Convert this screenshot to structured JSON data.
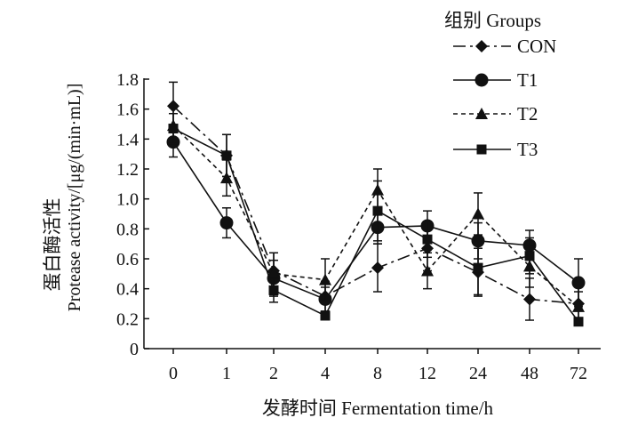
{
  "chart_data": {
    "type": "line",
    "categories": [
      "0",
      "1",
      "2",
      "4",
      "8",
      "12",
      "24",
      "48",
      "72"
    ],
    "xlabel": "发酵时间 Fermentation time/h",
    "ylabel_cn": "蛋白酶活性",
    "ylabel_en": "Protease activity/[μg/(min·mL)]",
    "ylim": [
      0,
      1.8
    ],
    "yticks": [
      "0",
      "0.2",
      "0.4",
      "0.6",
      "0.8",
      "1.0",
      "1.2",
      "1.4",
      "1.6",
      "1.8"
    ],
    "legend_title": "组别 Groups",
    "legend_position": "top-right",
    "grid": false,
    "series": [
      {
        "name": "CON",
        "marker": "diamond",
        "dash": "dashdot",
        "values": [
          1.62,
          1.29,
          0.52,
          0.35,
          0.54,
          0.67,
          0.51,
          0.33,
          0.3
        ],
        "errors": [
          0.16,
          0.14,
          0.12,
          0.1,
          0.16,
          0.15,
          0.16,
          0.14,
          0.12
        ]
      },
      {
        "name": "T1",
        "marker": "circle",
        "dash": "solid",
        "values": [
          1.38,
          0.84,
          0.47,
          0.33,
          0.81,
          0.82,
          0.72,
          0.69,
          0.44
        ],
        "errors": [
          0.1,
          0.1,
          0.12,
          0.08,
          0.11,
          0.1,
          0.12,
          0.1,
          0.16
        ]
      },
      {
        "name": "T2",
        "marker": "triangle",
        "dash": "dotted",
        "values": [
          1.49,
          1.14,
          0.5,
          0.46,
          1.06,
          0.52,
          0.9,
          0.55,
          0.28
        ],
        "errors": [
          0.12,
          0.12,
          0.14,
          0.14,
          0.14,
          0.12,
          0.14,
          0.14,
          0.1
        ]
      },
      {
        "name": "T3",
        "marker": "square",
        "dash": "solid",
        "values": [
          1.47,
          1.29,
          0.39,
          0.22,
          0.92,
          0.73,
          0.54,
          0.62,
          0.18
        ],
        "errors": [
          0.1,
          0.14,
          0.08,
          0.02,
          0.2,
          0.12,
          0.18,
          0.12,
          0.01
        ]
      }
    ]
  }
}
